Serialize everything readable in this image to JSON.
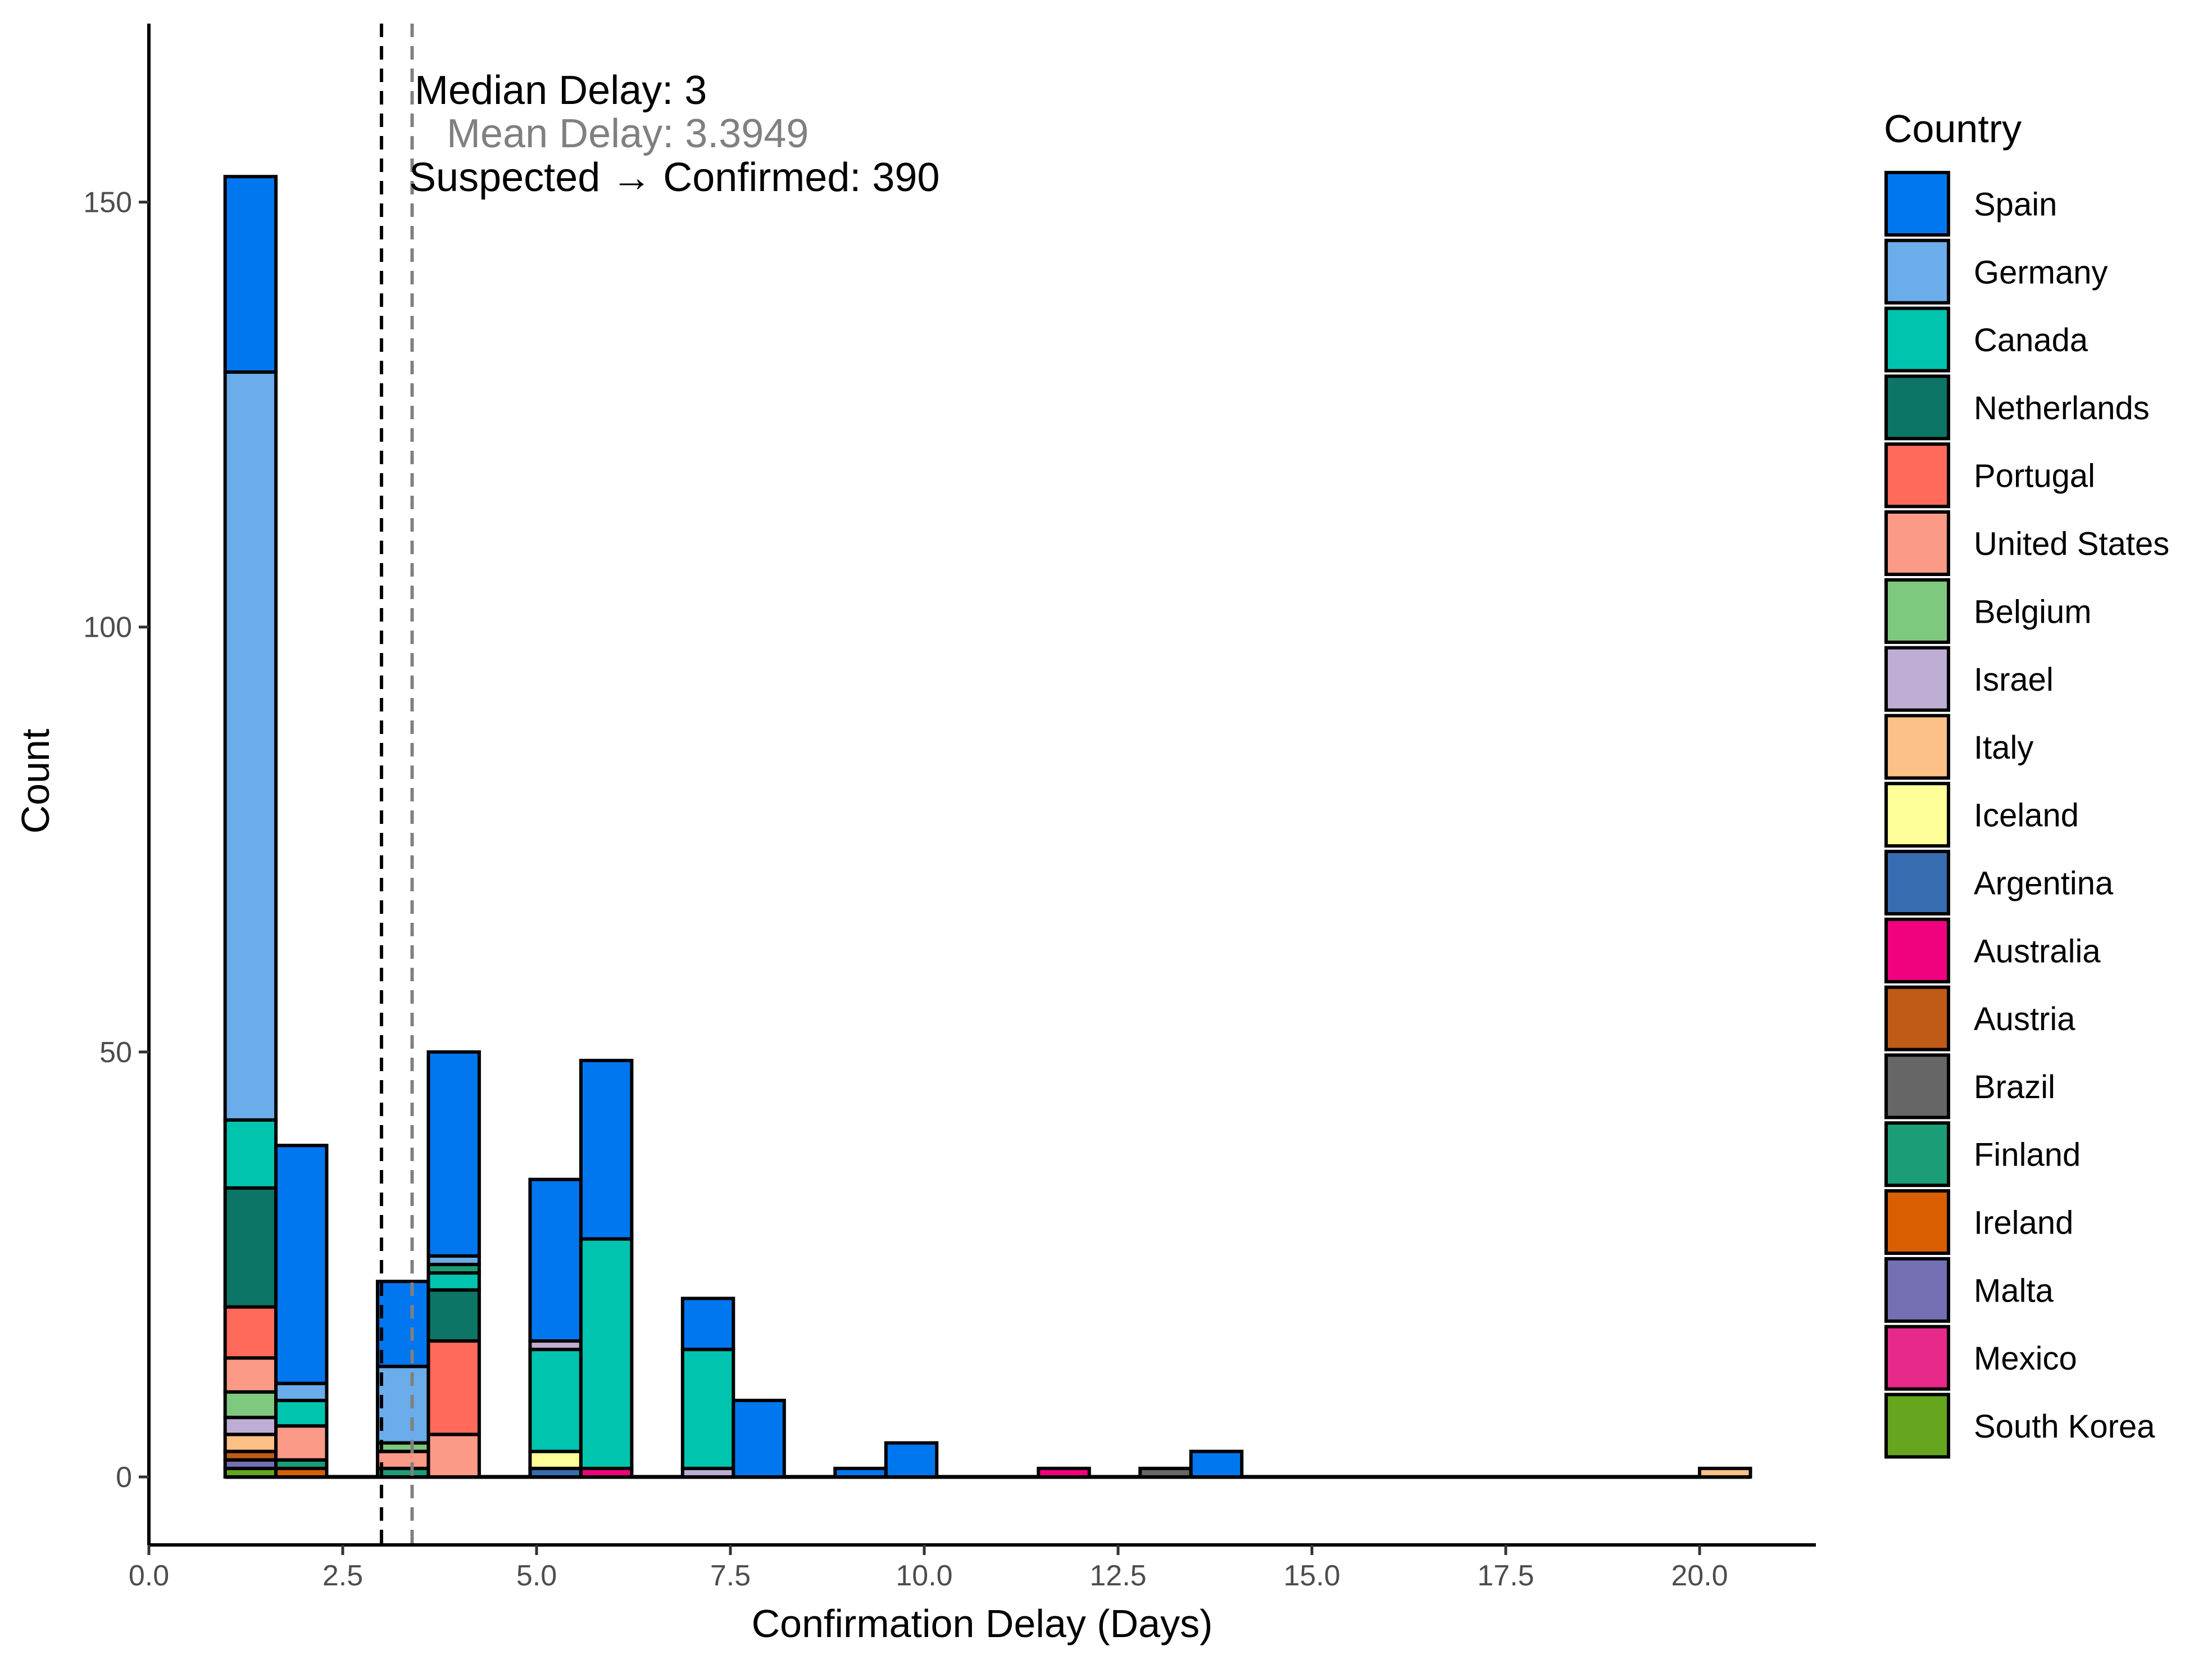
{
  "chart_data": {
    "type": "bar",
    "stacked": true,
    "xlabel": "Confirmation Delay (Days)",
    "ylabel": "Count",
    "xlim": [
      0,
      21.5
    ],
    "ylim": [
      -8,
      171
    ],
    "x_ticks": [
      {
        "value": 0,
        "label": "0.0"
      },
      {
        "value": 2.5,
        "label": "2.5"
      },
      {
        "value": 5,
        "label": "5.0"
      },
      {
        "value": 7.5,
        "label": "7.5"
      },
      {
        "value": 10,
        "label": "10.0"
      },
      {
        "value": 12.5,
        "label": "12.5"
      },
      {
        "value": 15,
        "label": "15.0"
      },
      {
        "value": 17.5,
        "label": "17.5"
      },
      {
        "value": 20,
        "label": "20.0"
      }
    ],
    "y_ticks": [
      {
        "value": 0,
        "label": "0"
      },
      {
        "value": 50,
        "label": "50"
      },
      {
        "value": 100,
        "label": "100"
      },
      {
        "value": 150,
        "label": "150"
      }
    ],
    "grid": false,
    "legend": {
      "title": "Country",
      "position": "right",
      "entries": [
        {
          "name": "Spain",
          "color": "#0077EE"
        },
        {
          "name": "Germany",
          "color": "#6AADEA"
        },
        {
          "name": "Canada",
          "color": "#00C4AE"
        },
        {
          "name": "Netherlands",
          "color": "#0D7566"
        },
        {
          "name": "Portugal",
          "color": "#FF6A5A"
        },
        {
          "name": "United States",
          "color": "#FB9A87"
        },
        {
          "name": "Belgium",
          "color": "#7FC97F"
        },
        {
          "name": "Israel",
          "color": "#BEAED4"
        },
        {
          "name": "Italy",
          "color": "#FDC086"
        },
        {
          "name": "Iceland",
          "color": "#FFFF99"
        },
        {
          "name": "Argentina",
          "color": "#386CB0"
        },
        {
          "name": "Australia",
          "color": "#F0027F"
        },
        {
          "name": "Austria",
          "color": "#BF5B17"
        },
        {
          "name": "Brazil",
          "color": "#666666"
        },
        {
          "name": "Finland",
          "color": "#1B9E77"
        },
        {
          "name": "Ireland",
          "color": "#D95F02"
        },
        {
          "name": "Malta",
          "color": "#7570B3"
        },
        {
          "name": "Mexico",
          "color": "#E7298A"
        },
        {
          "name": "South Korea",
          "color": "#66A61E"
        }
      ]
    },
    "bin_width": 0.6555,
    "bins": [
      {
        "start": 0.983,
        "segments": [
          {
            "country": "South Korea",
            "count": 1
          },
          {
            "country": "Malta",
            "count": 1
          },
          {
            "country": "Austria",
            "count": 1
          },
          {
            "country": "Italy",
            "count": 2
          },
          {
            "country": "Israel",
            "count": 2
          },
          {
            "country": "Belgium",
            "count": 3
          },
          {
            "country": "United States",
            "count": 4
          },
          {
            "country": "Portugal",
            "count": 6
          },
          {
            "country": "Netherlands",
            "count": 14
          },
          {
            "country": "Canada",
            "count": 8
          },
          {
            "country": "Germany",
            "count": 88
          },
          {
            "country": "Spain",
            "count": 23
          }
        ]
      },
      {
        "start": 1.638,
        "segments": [
          {
            "country": "Ireland",
            "count": 1
          },
          {
            "country": "Finland",
            "count": 1
          },
          {
            "country": "United States",
            "count": 4
          },
          {
            "country": "Canada",
            "count": 3
          },
          {
            "country": "Germany",
            "count": 2
          },
          {
            "country": "Spain",
            "count": 28
          }
        ]
      },
      {
        "start": 2.949,
        "segments": [
          {
            "country": "Finland",
            "count": 1
          },
          {
            "country": "United States",
            "count": 2
          },
          {
            "country": "Belgium",
            "count": 1
          },
          {
            "country": "Germany",
            "count": 9
          },
          {
            "country": "Spain",
            "count": 10
          }
        ]
      },
      {
        "start": 3.605,
        "segments": [
          {
            "country": "United States",
            "count": 5
          },
          {
            "country": "Portugal",
            "count": 11
          },
          {
            "country": "Netherlands",
            "count": 6
          },
          {
            "country": "Canada",
            "count": 2
          },
          {
            "country": "Finland",
            "count": 1
          },
          {
            "country": "Germany",
            "count": 1
          },
          {
            "country": "Spain",
            "count": 24
          }
        ]
      },
      {
        "start": 4.916,
        "segments": [
          {
            "country": "Argentina",
            "count": 1
          },
          {
            "country": "Iceland",
            "count": 2
          },
          {
            "country": "Canada",
            "count": 12
          },
          {
            "country": "Israel",
            "count": 1
          },
          {
            "country": "Spain",
            "count": 19
          }
        ]
      },
      {
        "start": 5.572,
        "segments": [
          {
            "country": "Australia",
            "count": 1
          },
          {
            "country": "Canada",
            "count": 27
          },
          {
            "country": "Spain",
            "count": 21
          }
        ]
      },
      {
        "start": 6.883,
        "segments": [
          {
            "country": "Israel",
            "count": 1
          },
          {
            "country": "Canada",
            "count": 14
          },
          {
            "country": "Spain",
            "count": 6
          }
        ]
      },
      {
        "start": 7.539,
        "segments": [
          {
            "country": "Spain",
            "count": 9
          }
        ]
      },
      {
        "start": 8.85,
        "segments": [
          {
            "country": "Spain",
            "count": 1
          }
        ]
      },
      {
        "start": 9.506,
        "segments": [
          {
            "country": "Spain",
            "count": 4
          }
        ]
      },
      {
        "start": 11.473,
        "segments": [
          {
            "country": "Australia",
            "count": 1
          }
        ]
      },
      {
        "start": 12.784,
        "segments": [
          {
            "country": "Brazil",
            "count": 1
          }
        ]
      },
      {
        "start": 13.44,
        "segments": [
          {
            "country": "Spain",
            "count": 3
          }
        ]
      },
      {
        "start": 20.0,
        "segments": [
          {
            "country": "Italy",
            "count": 1
          }
        ]
      }
    ],
    "baseline": {
      "from": 0.983,
      "to": 20.655
    },
    "vlines": [
      {
        "name": "median",
        "value": 3.0,
        "color": "#000000"
      },
      {
        "name": "mean",
        "value": 3.3949,
        "color": "#808080"
      }
    ],
    "annotations": [
      {
        "name": "median-annotation",
        "text": "Median Delay: 3",
        "color": "#000000"
      },
      {
        "name": "mean-annotation",
        "text": "Mean Delay: 3.3949",
        "color": "#808080"
      },
      {
        "name": "count-annotation",
        "text": "Suspected → Confirmed: 390",
        "color": "#000000"
      }
    ]
  }
}
